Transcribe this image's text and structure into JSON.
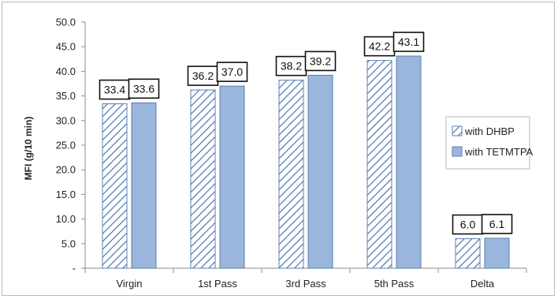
{
  "chart_data": {
    "type": "bar",
    "ylabel": "MFI (g/10 min)",
    "xlabel": "",
    "ylim": [
      0,
      50
    ],
    "ytick_labels": [
      "-",
      "5.0",
      "10.0",
      "15.0",
      "20.0",
      "25.0",
      "30.0",
      "35.0",
      "40.0",
      "45.0",
      "50.0"
    ],
    "categories": [
      "Virgin",
      "1st Pass",
      "3rd Pass",
      "5th Pass",
      "Delta"
    ],
    "series": [
      {
        "name": "with DHBP",
        "values": [
          33.4,
          36.2,
          38.2,
          42.2,
          6.0
        ],
        "labels": [
          "33.4",
          "36.2",
          "38.2",
          "42.2",
          "6.0"
        ],
        "fill": "hatched"
      },
      {
        "name": "with TETMTPA",
        "values": [
          33.6,
          37.0,
          39.2,
          43.1,
          6.1
        ],
        "labels": [
          "33.6",
          "37.0",
          "39.2",
          "43.1",
          "6.1"
        ],
        "fill": "solid"
      }
    ],
    "grid": false,
    "legend": "right",
    "colors": {
      "bar_fill": "#9ab6dc",
      "bar_stroke": "#5b7fb0",
      "hatch": "#3f6aa6",
      "axis": "#8c8c8c"
    }
  }
}
